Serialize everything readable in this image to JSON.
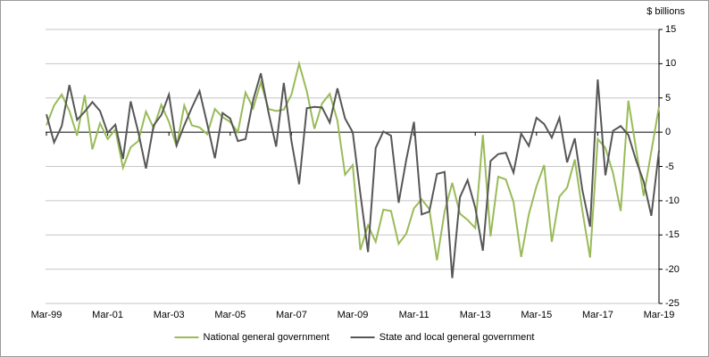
{
  "chart_data": {
    "type": "line",
    "unit_label": "$ billions",
    "grid": true,
    "legend_position": "bottom",
    "ylim": [
      -25,
      15
    ],
    "y_ticks": [
      15,
      10,
      5,
      0,
      -5,
      -10,
      -15,
      -20,
      -25
    ],
    "x_tick_labels": [
      "Mar-99",
      "Mar-01",
      "Mar-03",
      "Mar-05",
      "Mar-07",
      "Mar-09",
      "Mar-11",
      "Mar-13",
      "Mar-15",
      "Mar-17",
      "Mar-19"
    ],
    "categories": [
      "Mar-99",
      "Jun-99",
      "Sep-99",
      "Dec-99",
      "Mar-00",
      "Jun-00",
      "Sep-00",
      "Dec-00",
      "Mar-01",
      "Jun-01",
      "Sep-01",
      "Dec-01",
      "Mar-02",
      "Jun-02",
      "Sep-02",
      "Dec-02",
      "Mar-03",
      "Jun-03",
      "Sep-03",
      "Dec-03",
      "Mar-04",
      "Jun-04",
      "Sep-04",
      "Dec-04",
      "Mar-05",
      "Jun-05",
      "Sep-05",
      "Dec-05",
      "Mar-06",
      "Jun-06",
      "Sep-06",
      "Dec-06",
      "Mar-07",
      "Jun-07",
      "Sep-07",
      "Dec-07",
      "Mar-08",
      "Jun-08",
      "Sep-08",
      "Dec-08",
      "Mar-09",
      "Jun-09",
      "Sep-09",
      "Dec-09",
      "Mar-10",
      "Jun-10",
      "Sep-10",
      "Dec-10",
      "Mar-11",
      "Jun-11",
      "Sep-11",
      "Dec-11",
      "Mar-12",
      "Jun-12",
      "Sep-12",
      "Dec-12",
      "Mar-13",
      "Jun-13",
      "Sep-13",
      "Dec-13",
      "Mar-14",
      "Jun-14",
      "Sep-14",
      "Dec-14",
      "Mar-15",
      "Jun-15",
      "Sep-15",
      "Dec-15",
      "Mar-16",
      "Jun-16",
      "Sep-16",
      "Dec-16",
      "Mar-17",
      "Jun-17",
      "Sep-17",
      "Dec-17",
      "Mar-18",
      "Jun-18",
      "Sep-18",
      "Dec-18",
      "Mar-19"
    ],
    "series": [
      {
        "name": "National general government",
        "color": "#9abb59",
        "values": [
          1.0,
          3.9,
          5.5,
          3.1,
          -0.5,
          5.4,
          -2.5,
          1.3,
          -1.0,
          0.4,
          -5.2,
          -2.2,
          -1.3,
          3.0,
          0.6,
          4.0,
          1.5,
          -2.1,
          3.9,
          1.0,
          0.7,
          -0.3,
          3.4,
          2.2,
          1.5,
          0.0,
          5.8,
          3.5,
          7.3,
          3.4,
          3.1,
          3.3,
          5.5,
          10.0,
          6.0,
          0.5,
          4.2,
          5.6,
          1.7,
          -6.2,
          -4.8,
          -17.2,
          -13.6,
          -16.0,
          -11.3,
          -11.5,
          -16.3,
          -14.8,
          -11.1,
          -9.8,
          -11.2,
          -18.7,
          -11.6,
          -7.4,
          -11.9,
          -12.8,
          -14.0,
          -0.4,
          -15.2,
          -6.5,
          -6.9,
          -10.2,
          -18.2,
          -12.0,
          -7.9,
          -4.8,
          -16.0,
          -9.4,
          -8.1,
          -4.0,
          -11.5,
          -18.3,
          -1.0,
          -2.3,
          -6.0,
          -11.5,
          4.6,
          -2.4,
          -9.3,
          -2.8,
          3.7
        ]
      },
      {
        "name": "State and local general government",
        "color": "#575757",
        "values": [
          2.6,
          -1.5,
          0.9,
          6.9,
          1.8,
          3.0,
          4.4,
          3.1,
          -0.1,
          1.1,
          -3.9,
          4.5,
          0.0,
          -5.3,
          1.0,
          2.5,
          5.5,
          -1.9,
          1.0,
          3.6,
          6.0,
          1.2,
          -3.8,
          2.8,
          2.0,
          -1.3,
          -1.0,
          4.7,
          8.6,
          2.9,
          -2.1,
          7.2,
          -1.3,
          -7.6,
          3.5,
          3.7,
          3.6,
          1.4,
          6.4,
          2.0,
          0.0,
          -9.0,
          -17.5,
          -2.3,
          0.1,
          -0.5,
          -10.3,
          -4.0,
          1.5,
          -12.0,
          -11.6,
          -6.1,
          -5.8,
          -21.3,
          -9.5,
          -7.0,
          -11.0,
          -17.3,
          -4.2,
          -3.2,
          -3.0,
          -5.9,
          -0.2,
          -2.0,
          2.1,
          1.2,
          -0.8,
          2.1,
          -4.4,
          -0.9,
          -8.5,
          -13.8,
          7.7,
          -6.3,
          0.2,
          0.9,
          -0.4,
          -4.1,
          -7.2,
          -12.2,
          -2.7
        ]
      }
    ]
  }
}
